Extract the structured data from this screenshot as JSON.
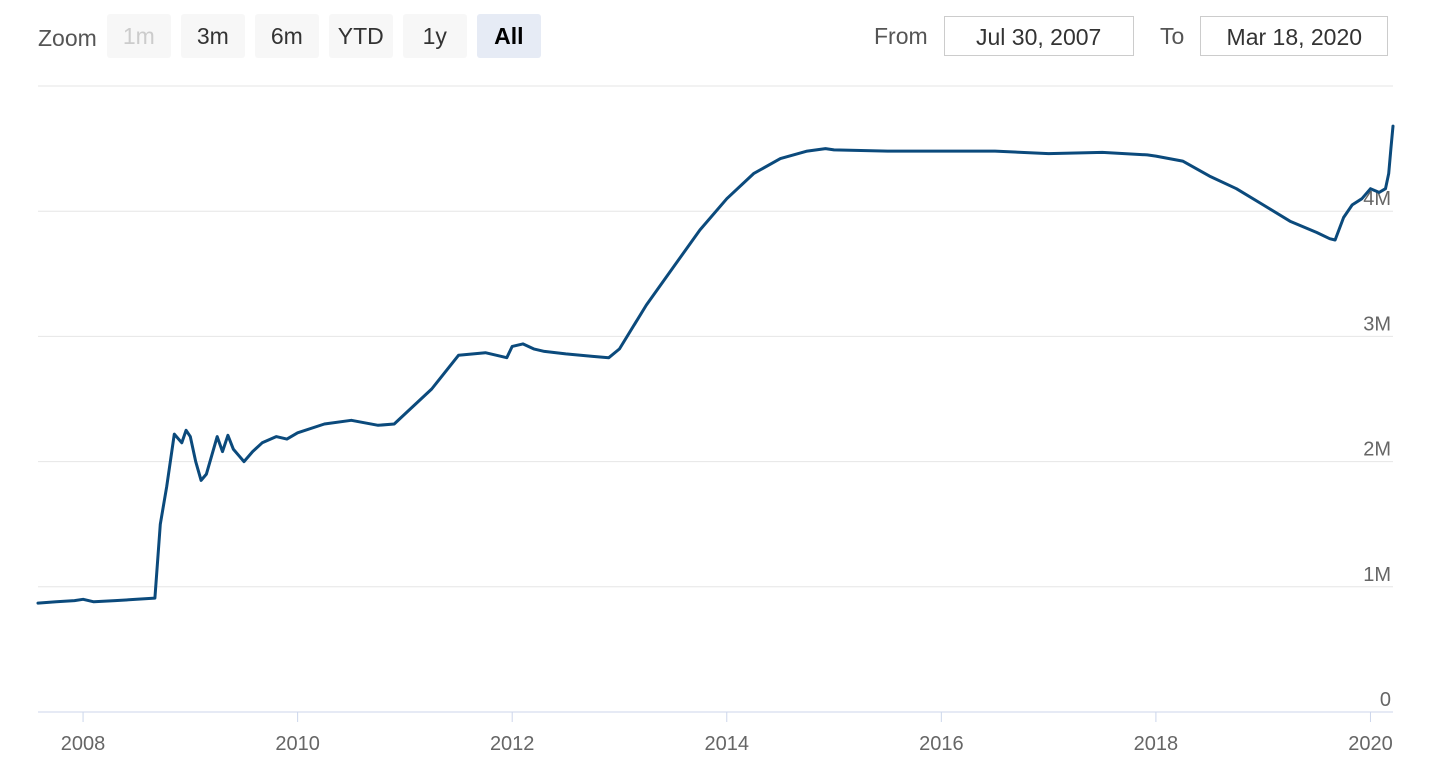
{
  "range_selector": {
    "zoom_label": "Zoom",
    "buttons": [
      {
        "label": "1m",
        "state": "disabled"
      },
      {
        "label": "3m",
        "state": "normal"
      },
      {
        "label": "6m",
        "state": "normal"
      },
      {
        "label": "YTD",
        "state": "normal"
      },
      {
        "label": "1y",
        "state": "normal"
      },
      {
        "label": "All",
        "state": "selected"
      }
    ],
    "from_label": "From",
    "from_value": "Jul 30, 2007",
    "to_label": "To",
    "to_value": "Mar 18, 2020"
  },
  "chart_data": {
    "type": "line",
    "title": "",
    "xlabel": "",
    "ylabel": "",
    "x_range": [
      2007.58,
      2020.21
    ],
    "ylim": [
      0,
      5000000
    ],
    "x_ticks": [
      {
        "value": 2008,
        "label": "2008"
      },
      {
        "value": 2010,
        "label": "2010"
      },
      {
        "value": 2012,
        "label": "2012"
      },
      {
        "value": 2014,
        "label": "2014"
      },
      {
        "value": 2016,
        "label": "2016"
      },
      {
        "value": 2018,
        "label": "2018"
      },
      {
        "value": 2020,
        "label": "2020"
      }
    ],
    "y_ticks": [
      {
        "value": 0,
        "label": "0"
      },
      {
        "value": 1000000,
        "label": "1M"
      },
      {
        "value": 2000000,
        "label": "2M"
      },
      {
        "value": 3000000,
        "label": "3M"
      },
      {
        "value": 4000000,
        "label": "4M"
      }
    ],
    "line_color": "#0b4a7c",
    "grid": true,
    "series": [
      {
        "x": [
          2007.58,
          2007.75,
          2007.92,
          2008.0,
          2008.1,
          2008.3,
          2008.5,
          2008.67,
          2008.72,
          2008.78,
          2008.85,
          2008.92,
          2008.96,
          2009.0,
          2009.05,
          2009.1,
          2009.15,
          2009.2,
          2009.25,
          2009.3,
          2009.35,
          2009.4,
          2009.45,
          2009.5,
          2009.58,
          2009.67,
          2009.8,
          2009.9,
          2010.0,
          2010.25,
          2010.5,
          2010.75,
          2010.9,
          2011.0,
          2011.25,
          2011.5,
          2011.75,
          2011.95,
          2012.0,
          2012.1,
          2012.2,
          2012.3,
          2012.5,
          2012.75,
          2012.9,
          2013.0,
          2013.25,
          2013.5,
          2013.75,
          2014.0,
          2014.25,
          2014.5,
          2014.75,
          2014.92,
          2015.0,
          2015.5,
          2016.0,
          2016.5,
          2017.0,
          2017.5,
          2017.92,
          2018.0,
          2018.25,
          2018.5,
          2018.75,
          2019.0,
          2019.25,
          2019.5,
          2019.62,
          2019.67,
          2019.75,
          2019.83,
          2019.92,
          2020.0,
          2020.08,
          2020.14,
          2020.17,
          2020.19,
          2020.21
        ],
        "y": [
          870000,
          880000,
          890000,
          900000,
          880000,
          890000,
          900000,
          910000,
          1500000,
          1800000,
          2220000,
          2150000,
          2250000,
          2200000,
          2000000,
          1850000,
          1900000,
          2050000,
          2200000,
          2080000,
          2210000,
          2100000,
          2050000,
          2000000,
          2080000,
          2150000,
          2200000,
          2180000,
          2230000,
          2300000,
          2330000,
          2290000,
          2300000,
          2380000,
          2580000,
          2850000,
          2870000,
          2830000,
          2920000,
          2940000,
          2900000,
          2880000,
          2860000,
          2840000,
          2830000,
          2900000,
          3250000,
          3550000,
          3850000,
          4100000,
          4300000,
          4420000,
          4480000,
          4500000,
          4490000,
          4480000,
          4480000,
          4480000,
          4460000,
          4470000,
          4450000,
          4440000,
          4400000,
          4280000,
          4180000,
          4050000,
          3920000,
          3830000,
          3780000,
          3770000,
          3950000,
          4050000,
          4100000,
          4180000,
          4150000,
          4180000,
          4300000,
          4500000,
          4680000
        ]
      }
    ]
  }
}
